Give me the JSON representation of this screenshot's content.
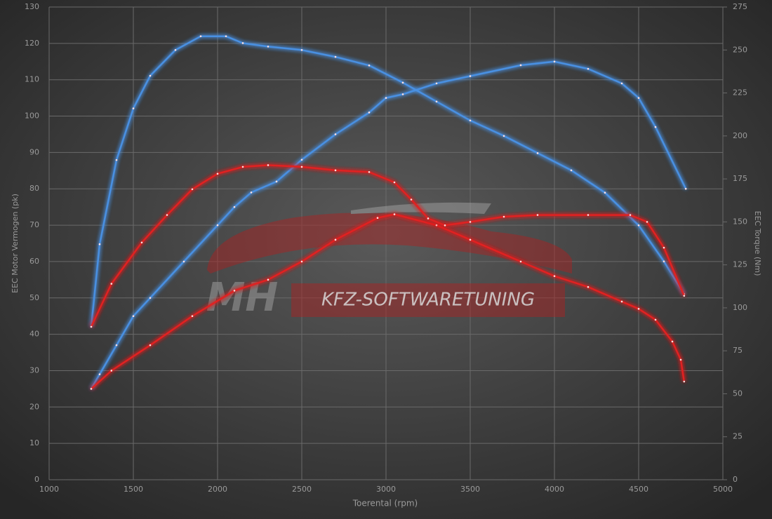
{
  "chart_data": {
    "type": "line",
    "x_label": "Toerental (rpm)",
    "y_label": "EEC Motor Vermogen (pk)",
    "y2_label": "EEC Torque (Nm)",
    "xlim": [
      1000,
      5000
    ],
    "xticks": [
      1000,
      1500,
      2000,
      2500,
      3000,
      3500,
      4000,
      4500,
      5000
    ],
    "ylim": [
      0,
      130
    ],
    "yticks": [
      0,
      10,
      20,
      30,
      40,
      50,
      60,
      70,
      80,
      90,
      100,
      110,
      120,
      130
    ],
    "y2lim": [
      0,
      275
    ],
    "y2ticks": [
      0,
      25,
      50,
      75,
      100,
      125,
      150,
      175,
      200,
      225,
      250,
      275
    ],
    "grid": true,
    "series": [
      {
        "color": "#4a90e2",
        "axis": "y",
        "x": [
          1250,
          1300,
          1400,
          1500,
          1600,
          1800,
          2000,
          2100,
          2200,
          2350,
          2500,
          2700,
          2900,
          3000,
          3100,
          3300,
          3500,
          3800,
          4000,
          4200,
          4400,
          4500,
          4600,
          4780
        ],
        "values": [
          25,
          29,
          37,
          45,
          50,
          60,
          70,
          75,
          79,
          82,
          88,
          95,
          101,
          105,
          106,
          109,
          111,
          114,
          115,
          113,
          109,
          105,
          97,
          80
        ]
      },
      {
        "color": "#4a90e2",
        "axis": "y2",
        "x": [
          1250,
          1300,
          1400,
          1500,
          1600,
          1750,
          1900,
          2050,
          2150,
          2300,
          2500,
          2700,
          2900,
          3100,
          3300,
          3500,
          3700,
          3900,
          4100,
          4300,
          4500,
          4650,
          4770
        ],
        "values": [
          89,
          137,
          186,
          216,
          235,
          250,
          258,
          258,
          254,
          252,
          250,
          246,
          241,
          231,
          220,
          209,
          200,
          190,
          180,
          167,
          148,
          127,
          108
        ]
      },
      {
        "color": "#e02020",
        "axis": "y",
        "x": [
          1250,
          1370,
          1600,
          1850,
          2100,
          2300,
          2500,
          2700,
          2950,
          3050,
          3300,
          3500,
          3800,
          4000,
          4200,
          4400,
          4500,
          4600,
          4700,
          4750,
          4770
        ],
        "values": [
          25,
          30,
          37,
          45,
          52,
          55,
          60,
          66,
          72,
          73,
          70,
          66,
          60,
          56,
          53,
          49,
          47,
          44,
          38,
          33,
          27
        ]
      },
      {
        "color": "#e02020",
        "axis": "y2",
        "x": [
          1250,
          1370,
          1550,
          1700,
          1850,
          2000,
          2150,
          2300,
          2500,
          2700,
          2900,
          3050,
          3150,
          3250,
          3350,
          3500,
          3700,
          3900,
          4200,
          4450,
          4550,
          4650,
          4770
        ],
        "values": [
          89,
          114,
          138,
          154,
          169,
          178,
          182,
          183,
          182,
          180,
          179,
          173,
          163,
          152,
          148,
          150,
          153,
          154,
          154,
          154,
          150,
          135,
          107
        ]
      }
    ]
  },
  "watermark": {
    "logo": "MH",
    "text": "KFZ-SOFTWARETUNING"
  }
}
